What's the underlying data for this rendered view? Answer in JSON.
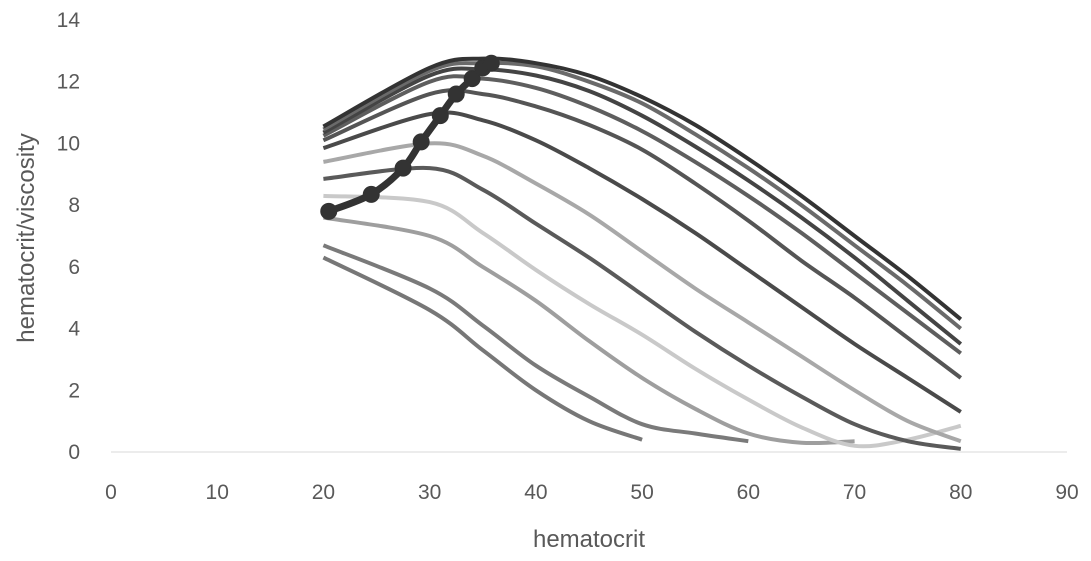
{
  "chart_data": {
    "type": "line",
    "xlabel": "hematocrit",
    "ylabel": "hematocrit/viscosity",
    "xlim": [
      0,
      90
    ],
    "ylim": [
      0,
      14
    ],
    "x_ticks": [
      "0",
      "10",
      "20",
      "30",
      "40",
      "50",
      "60",
      "70",
      "80",
      "90"
    ],
    "y_ticks": [
      "0",
      "2",
      "4",
      "6",
      "8",
      "10",
      "12",
      "14"
    ],
    "grid": false,
    "legend": "none",
    "series": [
      {
        "color": "#777777",
        "points": [
          [
            20,
            6.3
          ],
          [
            30,
            4.6
          ],
          [
            35,
            3.3
          ],
          [
            40,
            2.0
          ],
          [
            45,
            1.0
          ],
          [
            50,
            0.4
          ]
        ]
      },
      {
        "color": "#7a7a7a",
        "points": [
          [
            20,
            6.7
          ],
          [
            30,
            5.3
          ],
          [
            35,
            4.1
          ],
          [
            40,
            2.8
          ],
          [
            45,
            1.8
          ],
          [
            50,
            0.9
          ],
          [
            55,
            0.6
          ],
          [
            60,
            0.35
          ]
        ]
      },
      {
        "color": "#9e9e9e",
        "points": [
          [
            20,
            7.6
          ],
          [
            30,
            7.0
          ],
          [
            35,
            6.0
          ],
          [
            40,
            4.9
          ],
          [
            45,
            3.6
          ],
          [
            50,
            2.4
          ],
          [
            55,
            1.4
          ],
          [
            60,
            0.6
          ],
          [
            65,
            0.3
          ],
          [
            70,
            0.35
          ]
        ]
      },
      {
        "color": "#c9c9c9",
        "points": [
          [
            20,
            8.3
          ],
          [
            30,
            8.1
          ],
          [
            35,
            7.1
          ],
          [
            40,
            5.9
          ],
          [
            45,
            4.8
          ],
          [
            50,
            3.8
          ],
          [
            55,
            2.7
          ],
          [
            60,
            1.7
          ],
          [
            65,
            0.8
          ],
          [
            70,
            0.2
          ],
          [
            75,
            0.4
          ],
          [
            80,
            0.85
          ]
        ]
      },
      {
        "color": "#5a5a5a",
        "points": [
          [
            20,
            8.85
          ],
          [
            30,
            9.2
          ],
          [
            35,
            8.5
          ],
          [
            40,
            7.4
          ],
          [
            45,
            6.3
          ],
          [
            50,
            5.1
          ],
          [
            55,
            3.9
          ],
          [
            60,
            2.8
          ],
          [
            65,
            1.8
          ],
          [
            70,
            0.9
          ],
          [
            75,
            0.35
          ],
          [
            80,
            0.1
          ]
        ]
      },
      {
        "color": "#a8a8a8",
        "points": [
          [
            20,
            9.4
          ],
          [
            30,
            10.0
          ],
          [
            35,
            9.6
          ],
          [
            40,
            8.7
          ],
          [
            45,
            7.7
          ],
          [
            50,
            6.5
          ],
          [
            55,
            5.3
          ],
          [
            60,
            4.2
          ],
          [
            65,
            3.1
          ],
          [
            70,
            2.0
          ],
          [
            75,
            1.0
          ],
          [
            80,
            0.35
          ]
        ]
      },
      {
        "color": "#4a4a4a",
        "points": [
          [
            20,
            9.85
          ],
          [
            30,
            10.95
          ],
          [
            35,
            10.75
          ],
          [
            40,
            10.1
          ],
          [
            45,
            9.2
          ],
          [
            50,
            8.2
          ],
          [
            55,
            7.1
          ],
          [
            60,
            5.9
          ],
          [
            65,
            4.7
          ],
          [
            70,
            3.5
          ],
          [
            75,
            2.4
          ],
          [
            80,
            1.3
          ]
        ]
      },
      {
        "color": "#555555",
        "points": [
          [
            20,
            10.1
          ],
          [
            30,
            11.6
          ],
          [
            35,
            11.6
          ],
          [
            40,
            11.2
          ],
          [
            45,
            10.6
          ],
          [
            50,
            9.8
          ],
          [
            55,
            8.7
          ],
          [
            60,
            7.5
          ],
          [
            65,
            6.2
          ],
          [
            70,
            5.0
          ],
          [
            75,
            3.7
          ],
          [
            80,
            2.4
          ]
        ]
      },
      {
        "color": "#5e5e5e",
        "points": [
          [
            20,
            10.25
          ],
          [
            30,
            12.0
          ],
          [
            35,
            12.1
          ],
          [
            40,
            11.8
          ],
          [
            45,
            11.2
          ],
          [
            50,
            10.4
          ],
          [
            55,
            9.4
          ],
          [
            60,
            8.3
          ],
          [
            65,
            7.1
          ],
          [
            70,
            5.8
          ],
          [
            75,
            4.5
          ],
          [
            80,
            3.2
          ]
        ]
      },
      {
        "color": "#444444",
        "points": [
          [
            20,
            10.35
          ],
          [
            30,
            12.2
          ],
          [
            35,
            12.4
          ],
          [
            40,
            12.2
          ],
          [
            45,
            11.7
          ],
          [
            50,
            10.9
          ],
          [
            55,
            9.9
          ],
          [
            60,
            8.8
          ],
          [
            65,
            7.6
          ],
          [
            70,
            6.3
          ],
          [
            75,
            4.9
          ],
          [
            80,
            3.5
          ]
        ]
      },
      {
        "color": "#6a6a6a",
        "points": [
          [
            20,
            10.45
          ],
          [
            30,
            12.35
          ],
          [
            35,
            12.6
          ],
          [
            40,
            12.5
          ],
          [
            45,
            12.0
          ],
          [
            50,
            11.3
          ],
          [
            55,
            10.3
          ],
          [
            60,
            9.2
          ],
          [
            65,
            8.0
          ],
          [
            70,
            6.7
          ],
          [
            75,
            5.4
          ],
          [
            80,
            4.0
          ]
        ]
      },
      {
        "color": "#333333",
        "points": [
          [
            20,
            10.55
          ],
          [
            30,
            12.45
          ],
          [
            35,
            12.75
          ],
          [
            40,
            12.6
          ],
          [
            45,
            12.2
          ],
          [
            50,
            11.5
          ],
          [
            55,
            10.6
          ],
          [
            60,
            9.5
          ],
          [
            65,
            8.3
          ],
          [
            70,
            7.0
          ],
          [
            75,
            5.7
          ],
          [
            80,
            4.3
          ]
        ]
      }
    ],
    "highlight_series": {
      "color": "#333333",
      "markers": true,
      "points": [
        [
          20.5,
          7.8
        ],
        [
          24.5,
          8.35
        ],
        [
          27.5,
          9.2
        ],
        [
          29.2,
          10.05
        ],
        [
          31.0,
          10.9
        ],
        [
          32.5,
          11.6
        ],
        [
          34.0,
          12.1
        ],
        [
          35.0,
          12.45
        ],
        [
          35.8,
          12.6
        ]
      ]
    }
  }
}
